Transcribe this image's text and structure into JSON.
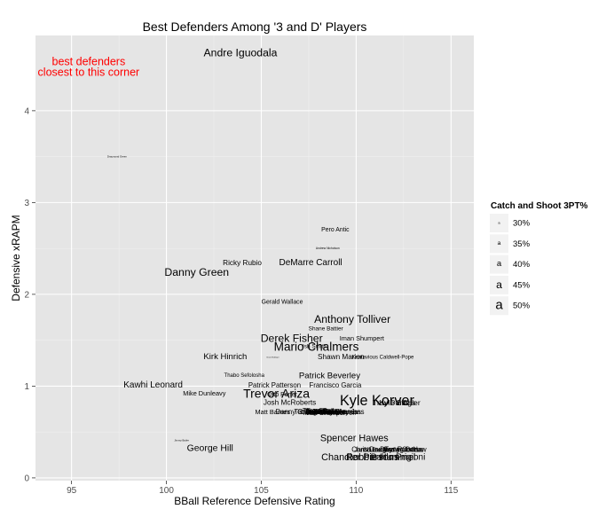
{
  "chart_data": {
    "type": "scatter",
    "title": "Best Defenders Among '3 and D' Players",
    "xlabel": "BBall Reference Defensive Rating",
    "ylabel": "Defensive xRAPM",
    "xlim": [
      93.1,
      116.2
    ],
    "ylim": [
      -0.03,
      4.82
    ],
    "xticks": [
      95,
      100,
      105,
      110,
      115
    ],
    "yticks": [
      0,
      1,
      2,
      3,
      4
    ],
    "grid": true,
    "legend": {
      "title": "Catch and Shoot 3PT%",
      "placement": "right",
      "entries": [
        {
          "label": "30%",
          "value": 30
        },
        {
          "label": "35%",
          "value": 35
        },
        {
          "label": "40%",
          "value": 40
        },
        {
          "label": "45%",
          "value": 45
        },
        {
          "label": "50%",
          "value": 50
        }
      ]
    },
    "annotation": {
      "lines": [
        "best defenders",
        "closest to this corner"
      ],
      "x": 95.9,
      "y": 4.43,
      "color": "#ff0000"
    },
    "points": [
      {
        "name": "Andre Iguodala",
        "x": 103.9,
        "y": 4.63,
        "size": 43
      },
      {
        "name": "Draymond Green",
        "x": 97.4,
        "y": 3.5,
        "size": 22
      },
      {
        "name": "Pero Antic",
        "x": 108.9,
        "y": 2.7,
        "size": 31
      },
      {
        "name": "Andrew Nicholson",
        "x": 108.5,
        "y": 2.5,
        "size": 23
      },
      {
        "name": "Ricky Rubio",
        "x": 104.0,
        "y": 2.34,
        "size": 34
      },
      {
        "name": "DeMarre Carroll",
        "x": 107.6,
        "y": 2.34,
        "size": 38
      },
      {
        "name": "Danny Green",
        "x": 101.6,
        "y": 2.24,
        "size": 43
      },
      {
        "name": "Gerald Wallace",
        "x": 106.1,
        "y": 1.91,
        "size": 31
      },
      {
        "name": "Anthony Tolliver",
        "x": 109.8,
        "y": 1.73,
        "size": 43
      },
      {
        "name": "Shane Battier",
        "x": 108.4,
        "y": 1.62,
        "size": 30
      },
      {
        "name": "Derek Fisher",
        "x": 106.6,
        "y": 1.52,
        "size": 43
      },
      {
        "name": "Iman Shumpert",
        "x": 110.3,
        "y": 1.52,
        "size": 32
      },
      {
        "name": "Mario Chalmers",
        "x": 107.9,
        "y": 1.43,
        "size": 46
      },
      {
        "name": "Ish Smith",
        "x": 107.8,
        "y": 1.43,
        "size": 30
      },
      {
        "name": "Kirk Hinrich",
        "x": 103.1,
        "y": 1.32,
        "size": 37
      },
      {
        "name": "Chase Budinger",
        "x": 105.6,
        "y": 1.31,
        "size": 20
      },
      {
        "name": "Shawn Marion",
        "x": 109.2,
        "y": 1.32,
        "size": 34
      },
      {
        "name": "Kentavious Caldwell-Pope",
        "x": 111.4,
        "y": 1.31,
        "size": 29
      },
      {
        "name": "Thabo Sefolosha",
        "x": 104.1,
        "y": 1.11,
        "size": 29
      },
      {
        "name": "Patrick Beverley",
        "x": 108.6,
        "y": 1.11,
        "size": 37
      },
      {
        "name": "Patrick Patterson",
        "x": 105.7,
        "y": 1.01,
        "size": 33
      },
      {
        "name": "Francisco Garcia",
        "x": 108.9,
        "y": 1.01,
        "size": 33
      },
      {
        "name": "Kawhi Leonard",
        "x": 99.3,
        "y": 1.01,
        "size": 38
      },
      {
        "name": "Trevor Ariza",
        "x": 105.8,
        "y": 0.92,
        "size": 47
      },
      {
        "name": "Mike Dunleavy",
        "x": 102.0,
        "y": 0.92,
        "size": 32
      },
      {
        "name": "Otto Porter",
        "x": 106.1,
        "y": 0.9,
        "size": 31
      },
      {
        "name": "Kyle Korver",
        "x": 111.1,
        "y": 0.84,
        "size": 52
      },
      {
        "name": "Troy Daniels",
        "x": 112.0,
        "y": 0.82,
        "size": 35
      },
      {
        "name": "Kyle Singler",
        "x": 112.3,
        "y": 0.82,
        "size": 35
      },
      {
        "name": "Josh McRoberts",
        "x": 106.5,
        "y": 0.82,
        "size": 34
      },
      {
        "name": "Matt Barnes",
        "x": 105.6,
        "y": 0.72,
        "size": 32
      },
      {
        "name": "Danny Granger",
        "x": 107.0,
        "y": 0.72,
        "size": 33
      },
      {
        "name": "Terrence Ross",
        "x": 107.9,
        "y": 0.72,
        "size": 33
      },
      {
        "name": "Tony Snell",
        "x": 108.0,
        "y": 0.73,
        "size": 33
      },
      {
        "name": "Courtney Lee",
        "x": 108.4,
        "y": 0.72,
        "size": 33
      },
      {
        "name": "Tim Hardaway Jr.",
        "x": 108.7,
        "y": 0.72,
        "size": 33
      },
      {
        "name": "Jeff Green",
        "x": 108.5,
        "y": 0.72,
        "size": 33
      },
      {
        "name": "Evan Turner",
        "x": 108.3,
        "y": 0.74,
        "size": 32
      },
      {
        "name": "Carrick Felix",
        "x": 108.0,
        "y": 0.72,
        "size": 32
      },
      {
        "name": "Marcus Morris",
        "x": 109.0,
        "y": 0.72,
        "size": 32
      },
      {
        "name": "Jae Crowder",
        "x": 108.4,
        "y": 0.71,
        "size": 33
      },
      {
        "name": "Iman Shumpert Jr.",
        "x": 108.6,
        "y": 0.71,
        "size": 32
      },
      {
        "name": "Chase Simmons",
        "x": 109.0,
        "y": 0.72,
        "size": 32
      },
      {
        "name": "Bobby Simmons",
        "x": 109.1,
        "y": 0.72,
        "size": 33
      },
      {
        "name": "Jimmy Butler",
        "x": 100.8,
        "y": 0.41,
        "size": 22
      },
      {
        "name": "Spencer Hawes",
        "x": 109.9,
        "y": 0.43,
        "size": 40
      },
      {
        "name": "George Hill",
        "x": 102.3,
        "y": 0.32,
        "size": 39
      },
      {
        "name": "Jared Dudley",
        "x": 110.9,
        "y": 0.31,
        "size": 32
      },
      {
        "name": "Chris Douglas-Roberts",
        "x": 111.6,
        "y": 0.31,
        "size": 33
      },
      {
        "name": "Chase Budinger Jr.",
        "x": 111.8,
        "y": 0.31,
        "size": 32
      },
      {
        "name": "Danny Outlaw",
        "x": 112.4,
        "y": 0.31,
        "size": 33
      },
      {
        "name": "Travis Outlaw",
        "x": 112.6,
        "y": 0.31,
        "size": 33
      },
      {
        "name": "Chandler Parsons",
        "x": 110.2,
        "y": 0.22,
        "size": 40
      },
      {
        "name": "Robbie Hummel",
        "x": 111.3,
        "y": 0.22,
        "size": 40
      },
      {
        "name": "Pablo Prigioni",
        "x": 112.2,
        "y": 0.22,
        "size": 38
      }
    ]
  }
}
